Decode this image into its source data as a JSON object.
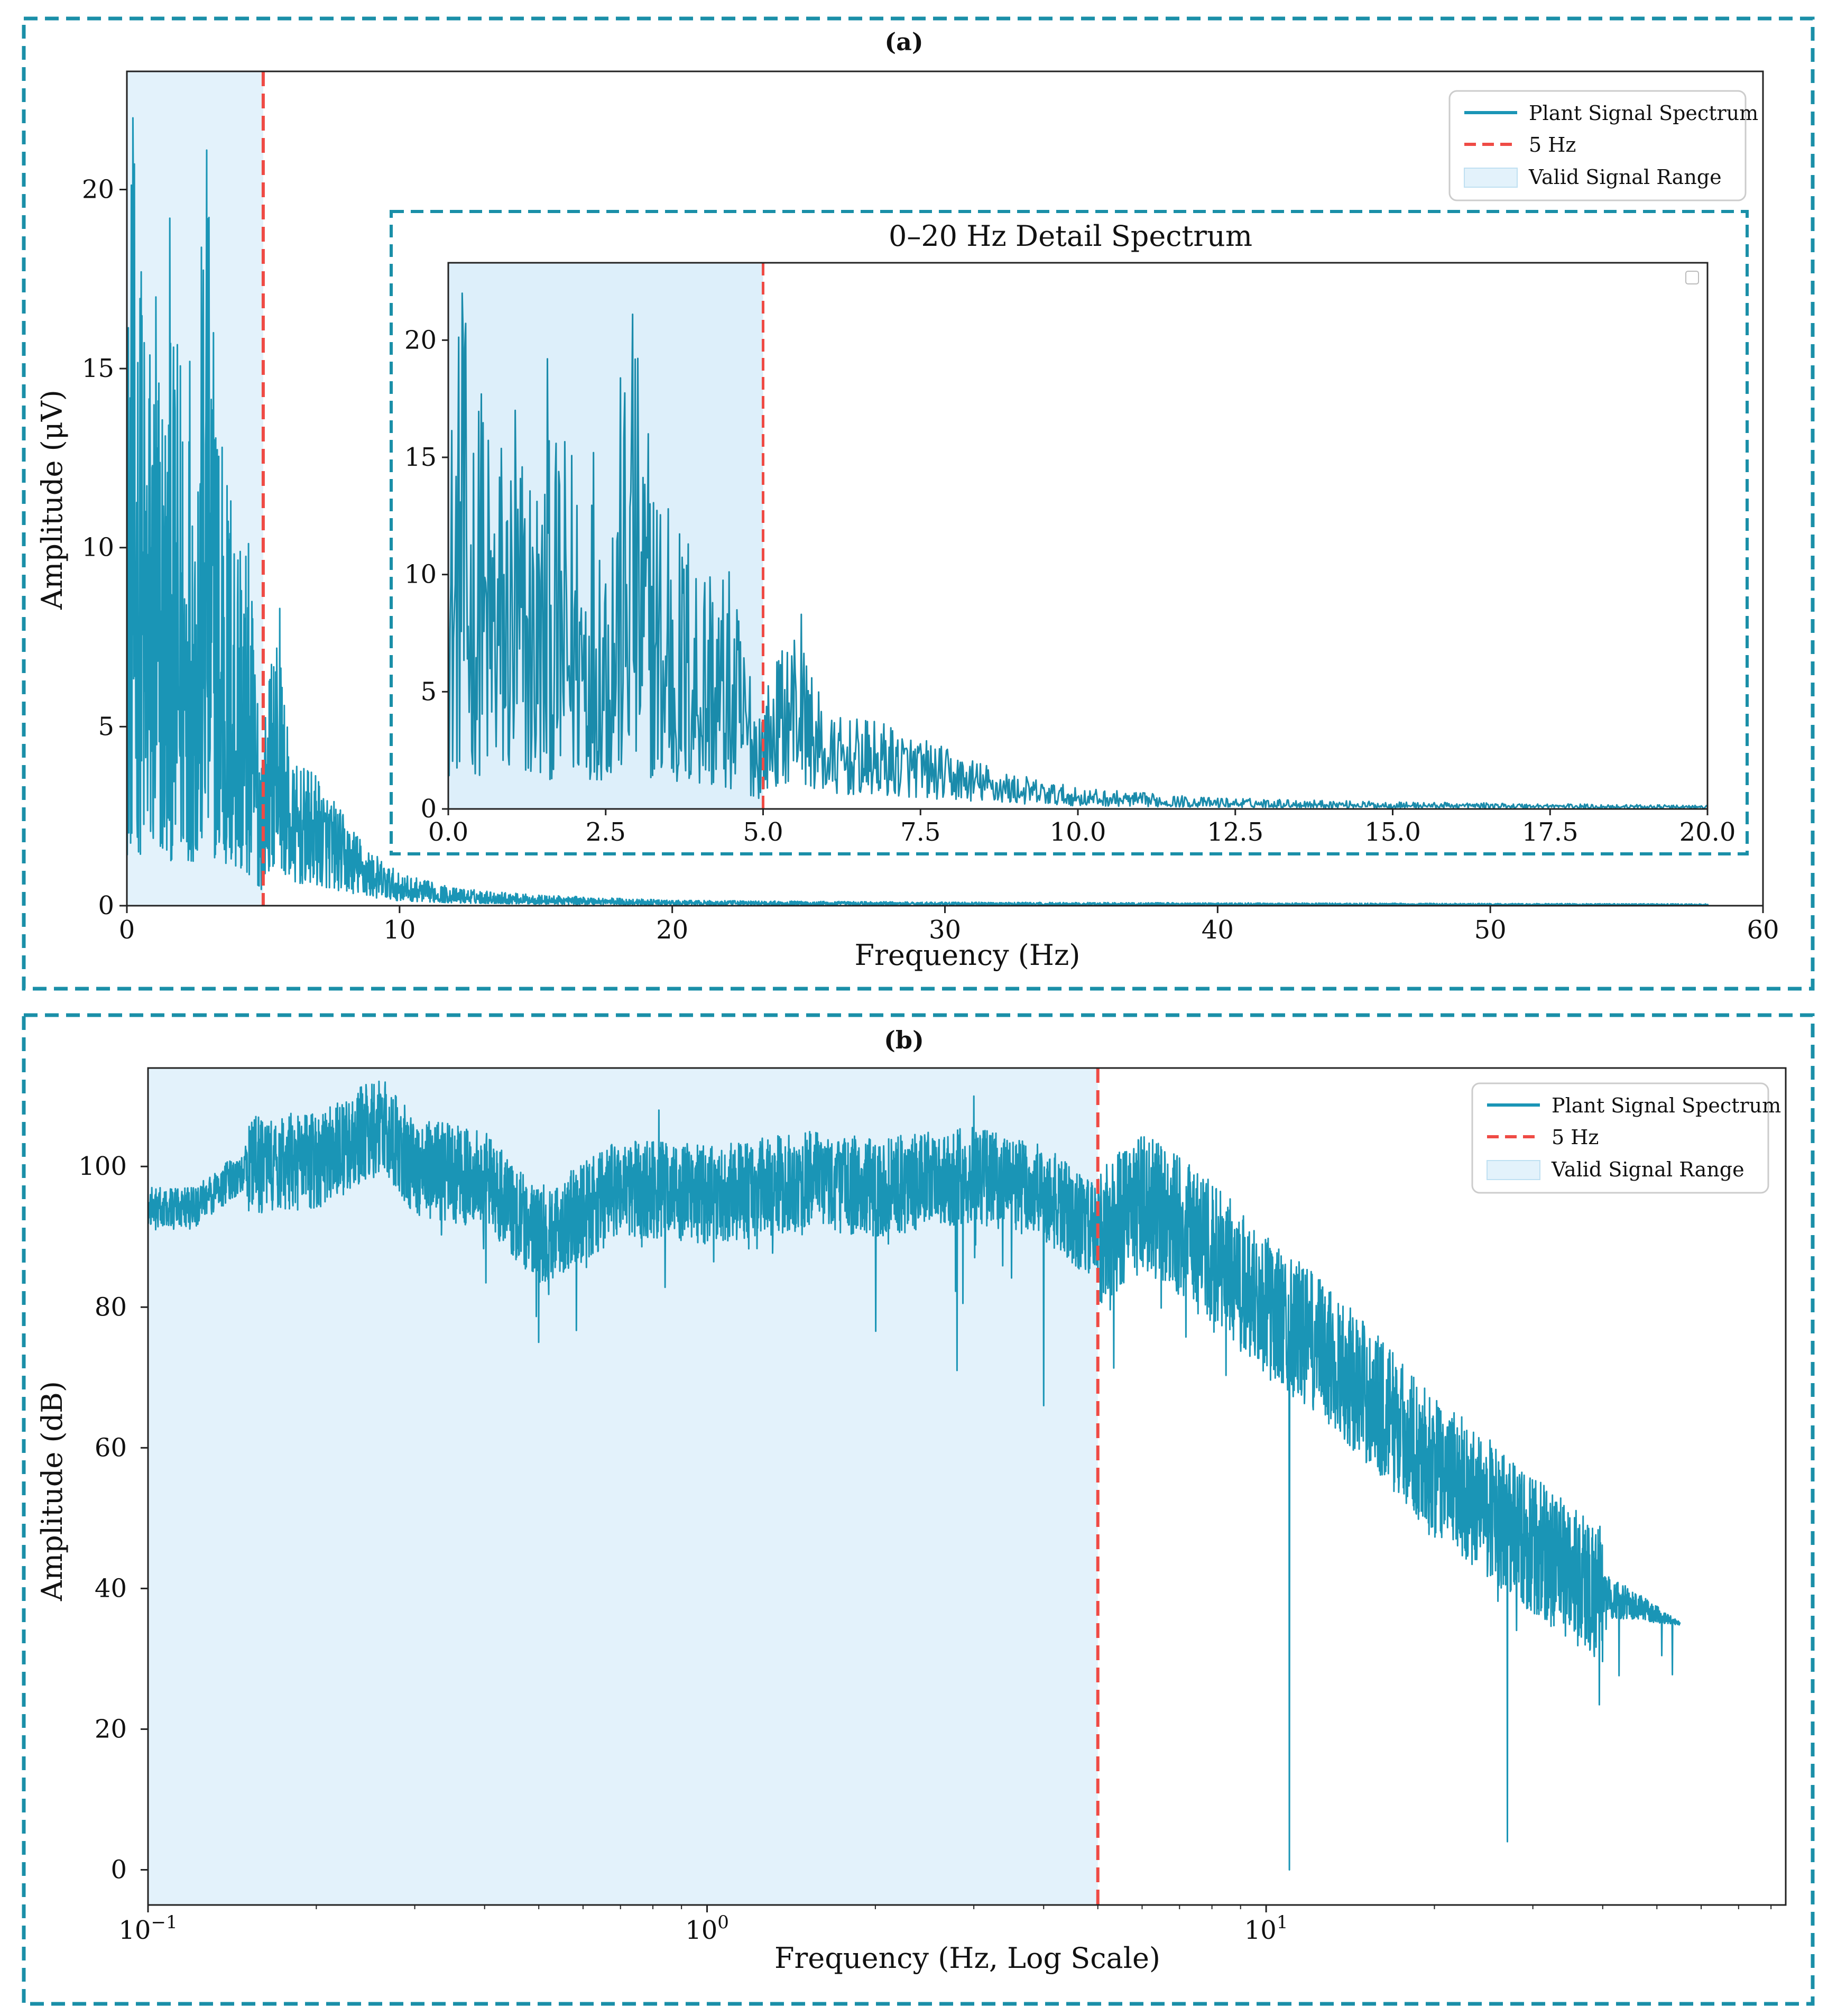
{
  "panel_a": {
    "label": "(a)",
    "chart_data": {
      "type": "line",
      "title": "(a)",
      "xlabel": "Frequency (Hz)",
      "ylabel": "Amplitude (μV)",
      "xlim": [
        0,
        60
      ],
      "ylim": [
        0,
        23.3
      ],
      "xticks": [
        0,
        10,
        20,
        30,
        40,
        50,
        60
      ],
      "xtick_labels": [
        "0",
        "10",
        "20",
        "30",
        "40",
        "50",
        "60"
      ],
      "yticks": [
        0,
        5,
        10,
        15,
        20
      ],
      "ytick_labels": [
        "0",
        "5",
        "10",
        "15",
        "20"
      ],
      "cutoff_hz": 5,
      "shaded_range": [
        0,
        5
      ],
      "grid": false,
      "legend_position": "top-right",
      "legend": [
        "Plant Signal Spectrum",
        "5 Hz",
        "Valid Signal Range"
      ],
      "series": [
        {
          "name": "Plant Signal Spectrum",
          "description_points": {
            "x": [
              0,
              0.2,
              0.5,
              1,
              1.5,
              2,
              2.5,
              2.9,
              3.5,
              4,
              4.5,
              5,
              5.5,
              6,
              7,
              8,
              9,
              10,
              12,
              15,
              20,
              30,
              40,
              58
            ],
            "y_peak": [
              17.2,
              22.0,
              17.7,
              17.0,
              15.5,
              16.5,
              15.2,
              21.1,
              12.8,
              12.5,
              10.0,
              5.0,
              8.3,
              4.0,
              3.7,
              2.5,
              1.5,
              0.9,
              0.5,
              0.3,
              0.15,
              0.1,
              0.08,
              0.05
            ]
          }
        }
      ]
    },
    "inset": {
      "chart_data": {
        "type": "line",
        "title": "0–20 Hz Detail Spectrum",
        "xlim": [
          0,
          20
        ],
        "ylim": [
          0,
          23.3
        ],
        "xticks": [
          0,
          2.5,
          5,
          7.5,
          10,
          12.5,
          15,
          17.5,
          20
        ],
        "xtick_labels": [
          "0.0",
          "2.5",
          "5.0",
          "7.5",
          "10.0",
          "12.5",
          "15.0",
          "17.5",
          "20.0"
        ],
        "yticks": [
          0,
          5,
          10,
          15,
          20
        ],
        "ytick_labels": [
          "0",
          "5",
          "10",
          "15",
          "20"
        ],
        "cutoff_hz": 5,
        "shaded_range": [
          0,
          5
        ],
        "grid": false
      }
    }
  },
  "panel_b": {
    "label": "(b)",
    "chart_data": {
      "type": "line",
      "title": "(b)",
      "xlabel": "Frequency (Hz, Log Scale)",
      "ylabel": "Amplitude (dB)",
      "xscale": "log",
      "xlim": [
        0.1,
        85
      ],
      "ylim": [
        -5,
        114
      ],
      "xticks": [
        0.1,
        1,
        10
      ],
      "xtick_labels_base": [
        "10",
        "10",
        "10"
      ],
      "xtick_labels_exp": [
        "−1",
        "0",
        "1"
      ],
      "yticks": [
        0,
        20,
        40,
        60,
        80,
        100
      ],
      "ytick_labels": [
        "0",
        "20",
        "40",
        "60",
        "80",
        "100"
      ],
      "cutoff_hz": 5,
      "shaded_range": [
        0.1,
        5
      ],
      "grid": false,
      "legend_position": "top-right",
      "legend": [
        "Plant Signal Spectrum",
        "5 Hz",
        "Valid Signal Range"
      ],
      "series": [
        {
          "name": "Plant Signal Spectrum",
          "description_points": {
            "x": [
              0.1,
              0.12,
              0.15,
              0.2,
              0.26,
              0.3,
              0.4,
              0.5,
              0.7,
              1,
              1.5,
              2,
              3,
              4,
              5,
              6,
              8,
              10,
              15,
              20,
              30,
              40,
              55
            ],
            "y": [
              94,
              94,
              100,
              101,
              106,
              100,
              98,
              90,
              97,
              96,
              98,
              97,
              99,
              96,
              90,
              95,
              88,
              80,
              68,
              57,
              46,
              39,
              35
            ],
            "notable_minima": [
              [
                0.5,
                75
              ],
              [
                2.8,
                71
              ],
              [
                4,
                66
              ],
              [
                11,
                0
              ],
              [
                27,
                4
              ]
            ]
          }
        }
      ]
    }
  },
  "colors": {
    "signal": "#1a95b6",
    "cutoff": "#ef4b45",
    "valid_range_fill": "#e3f2fb",
    "frame": "#1a8fa8",
    "axes": "#222222"
  }
}
